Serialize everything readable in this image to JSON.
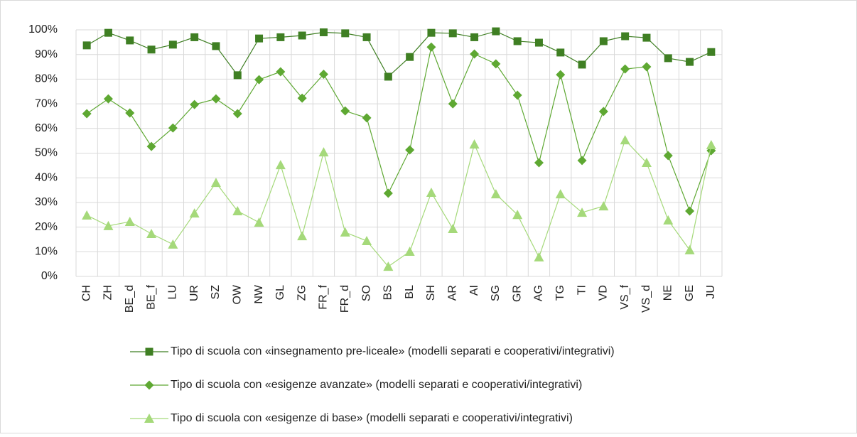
{
  "chart_data": {
    "type": "line",
    "categories": [
      "CH",
      "ZH",
      "BE_d",
      "BE_f",
      "LU",
      "UR",
      "SZ",
      "OW",
      "NW",
      "GL",
      "ZG",
      "FR_f",
      "FR_d",
      "SO",
      "BS",
      "BL",
      "SH",
      "AR",
      "AI",
      "SG",
      "GR",
      "AG",
      "TG",
      "TI",
      "VD",
      "VS_f",
      "VS_d",
      "NE",
      "GE",
      "JU"
    ],
    "series": [
      {
        "name": "Tipo di scuola con «insegnamento pre-liceale» (modelli separati e cooperativi/integrativi)",
        "color": "#3f7f23",
        "marker": "square",
        "values": [
          93.7,
          98.8,
          95.7,
          92,
          94,
          97,
          93.4,
          81.6,
          96.5,
          97,
          97.7,
          99,
          98.6,
          97,
          81,
          89,
          98.8,
          98.6,
          97,
          99.4,
          95.4,
          94.8,
          90.8,
          85.9,
          95.4,
          97.4,
          96.8,
          88.5,
          87,
          91
        ]
      },
      {
        "name": "Tipo di scuola con «esigenze avanzate» (modelli separati e cooperativi/integrativi)",
        "color": "#5ea832",
        "marker": "diamond",
        "values": [
          66,
          72,
          66.3,
          52.7,
          60.2,
          69.7,
          72,
          66,
          79.8,
          83,
          72.3,
          82,
          67.1,
          64.3,
          33.7,
          51.3,
          93,
          70,
          90.2,
          86.2,
          73.5,
          46.1,
          81.8,
          47,
          66.9,
          84.1,
          85,
          49,
          26.5,
          51
        ]
      },
      {
        "name": "Tipo di scuola con «esigenze di base» (modelli separati e cooperativi/integrativi)",
        "color": "#a5d97a",
        "marker": "triangle",
        "values": [
          24.8,
          20.5,
          22.2,
          17.3,
          13,
          25.6,
          38,
          26.5,
          21.9,
          45.2,
          16.4,
          50.4,
          17.9,
          14.4,
          4,
          10.1,
          34,
          19.3,
          53.6,
          33.4,
          25,
          7.8,
          33.4,
          25.9,
          28.5,
          55.3,
          46.1,
          22.8,
          10.7,
          53.3
        ]
      }
    ],
    "ylim": [
      0,
      100
    ],
    "yticks": [
      {
        "value": 0,
        "label": "0%"
      },
      {
        "value": 10,
        "label": "10%"
      },
      {
        "value": 20,
        "label": "20%"
      },
      {
        "value": 30,
        "label": "30%"
      },
      {
        "value": 40,
        "label": "40%"
      },
      {
        "value": 50,
        "label": "50%"
      },
      {
        "value": 60,
        "label": "60%"
      },
      {
        "value": 70,
        "label": "70%"
      },
      {
        "value": 80,
        "label": "80%"
      },
      {
        "value": 90,
        "label": "90%"
      },
      {
        "value": 100,
        "label": "100%"
      }
    ],
    "grid": true
  }
}
